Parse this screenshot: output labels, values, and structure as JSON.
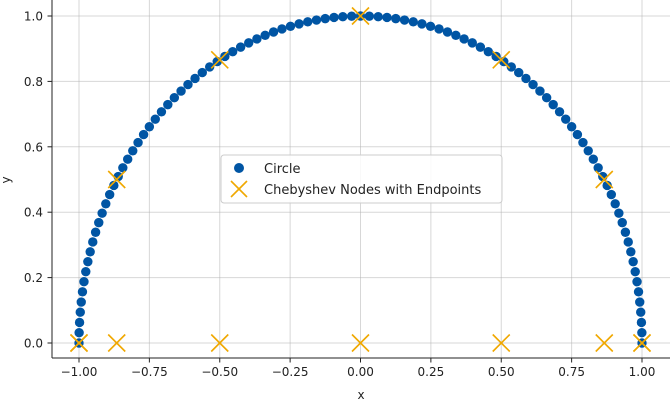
{
  "chart_data": {
    "type": "scatter",
    "title": "",
    "xlabel": "x",
    "ylabel": "y",
    "xlim": [
      -1.05,
      1.05
    ],
    "ylim": [
      -0.05,
      1.03
    ],
    "grid": true,
    "legend_position": "center",
    "xticks": [
      -1.0,
      -0.75,
      -0.5,
      -0.25,
      0.0,
      0.25,
      0.5,
      0.75,
      1.0
    ],
    "xtick_labels": [
      "−1.00",
      "−0.75",
      "−0.50",
      "−0.25",
      "0.00",
      "0.25",
      "0.50",
      "0.75",
      "1.00"
    ],
    "yticks": [
      0.0,
      0.2,
      0.4,
      0.6,
      0.8,
      1.0
    ],
    "ytick_labels": [
      "0.0",
      "0.2",
      "0.4",
      "0.6",
      "0.8",
      "1.0"
    ],
    "series": [
      {
        "name": "Circle",
        "marker": "circle",
        "color": "#0055a4",
        "x": [
          -1.0,
          -0.9995,
          -0.998,
          -0.9955,
          -0.992,
          -0.9877,
          -0.9823,
          -0.9759,
          -0.9686,
          -0.9603,
          -0.9511,
          -0.941,
          -0.9298,
          -0.9178,
          -0.9048,
          -0.891,
          -0.8763,
          -0.8607,
          -0.8443,
          -0.827,
          -0.809,
          -0.7902,
          -0.7705,
          -0.7501,
          -0.729,
          -0.7071,
          -0.6845,
          -0.6613,
          -0.6374,
          -0.6129,
          -0.5878,
          -0.5621,
          -0.5358,
          -0.509,
          -0.4818,
          -0.454,
          -0.4258,
          -0.3971,
          -0.3681,
          -0.3387,
          -0.309,
          -0.279,
          -0.2487,
          -0.2181,
          -0.1874,
          -0.1564,
          -0.1253,
          -0.0941,
          -0.0628,
          -0.0314,
          0.0,
          0.0314,
          0.0628,
          0.0941,
          0.1253,
          0.1564,
          0.1874,
          0.2181,
          0.2487,
          0.279,
          0.309,
          0.3387,
          0.3681,
          0.3971,
          0.4258,
          0.454,
          0.4818,
          0.509,
          0.5358,
          0.5621,
          0.5878,
          0.6129,
          0.6374,
          0.6613,
          0.6845,
          0.7071,
          0.729,
          0.7501,
          0.7705,
          0.7902,
          0.809,
          0.827,
          0.8443,
          0.8607,
          0.8763,
          0.891,
          0.9048,
          0.9178,
          0.9298,
          0.941,
          0.9511,
          0.9603,
          0.9686,
          0.9759,
          0.9823,
          0.9877,
          0.992,
          0.9955,
          0.998,
          0.9995,
          1.0
        ],
        "y": [
          0.0,
          0.0314,
          0.0628,
          0.0941,
          0.1253,
          0.1564,
          0.1874,
          0.2181,
          0.2487,
          0.279,
          0.309,
          0.3387,
          0.3681,
          0.3971,
          0.4258,
          0.454,
          0.4818,
          0.509,
          0.5358,
          0.5621,
          0.5878,
          0.6129,
          0.6374,
          0.6613,
          0.6845,
          0.7071,
          0.729,
          0.7501,
          0.7705,
          0.7902,
          0.809,
          0.827,
          0.8443,
          0.8607,
          0.8763,
          0.891,
          0.9048,
          0.9178,
          0.9298,
          0.941,
          0.9511,
          0.9603,
          0.9686,
          0.9759,
          0.9823,
          0.9877,
          0.992,
          0.9955,
          0.998,
          0.9995,
          1.0,
          0.9995,
          0.998,
          0.9955,
          0.992,
          0.9877,
          0.9823,
          0.9759,
          0.9686,
          0.9603,
          0.9511,
          0.941,
          0.9298,
          0.9178,
          0.9048,
          0.891,
          0.8763,
          0.8607,
          0.8443,
          0.827,
          0.809,
          0.7902,
          0.7705,
          0.7501,
          0.729,
          0.7071,
          0.6845,
          0.6613,
          0.6374,
          0.6129,
          0.5878,
          0.5621,
          0.5358,
          0.509,
          0.4818,
          0.454,
          0.4258,
          0.3971,
          0.3681,
          0.3387,
          0.309,
          0.279,
          0.2487,
          0.2181,
          0.1874,
          0.1564,
          0.1253,
          0.0941,
          0.0628,
          0.0314,
          0.0
        ]
      },
      {
        "name": "Chebyshev Nodes with Endpoints",
        "marker": "x",
        "color": "#f0a800",
        "x": [
          -1.0,
          -0.866,
          -0.5,
          0.0,
          0.5,
          0.866,
          1.0,
          -1.0,
          -0.866,
          -0.5,
          0.0,
          0.5,
          0.866,
          1.0
        ],
        "y": [
          0.0,
          0.5,
          0.866,
          1.0,
          0.866,
          0.5,
          0.0,
          0.0,
          0.0,
          0.0,
          0.0,
          0.0,
          0.0,
          0.0
        ]
      }
    ]
  }
}
